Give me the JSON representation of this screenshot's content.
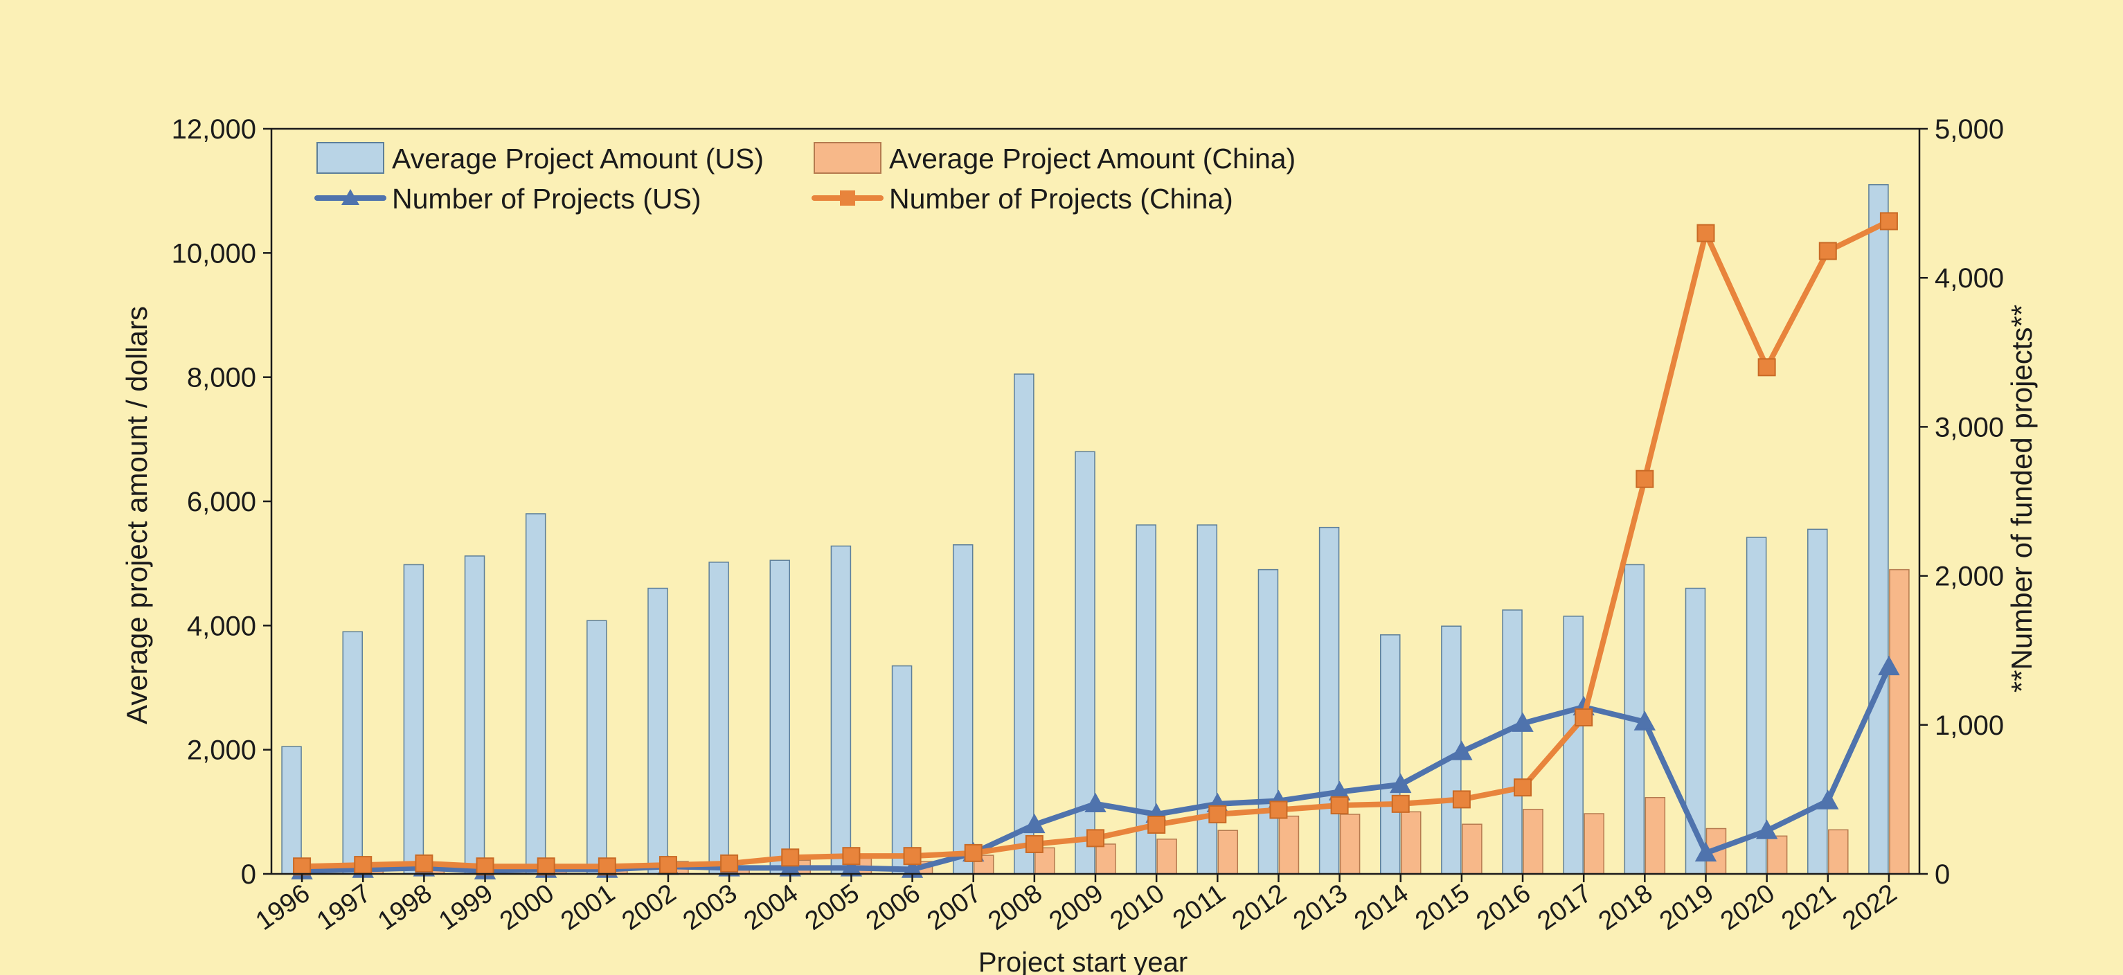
{
  "colors": {
    "background": "#fbf0b6",
    "us_bar": "#b9d4e6",
    "china_bar": "#f7b889",
    "us_line": "#4f73ad",
    "china_line": "#e8843c",
    "axis": "#1b1b1b"
  },
  "chart_data": {
    "type": "bar",
    "title": "",
    "xlabel": "Project start year",
    "ylabel": "Average project amount / dollars",
    "y2label": "**Number of funded projects**",
    "ylim": [
      0,
      12000
    ],
    "y2lim": [
      0,
      5000
    ],
    "yticks": [
      "0",
      "2,000",
      "4,000",
      "6,000",
      "8,000",
      "10,000",
      "12,000"
    ],
    "y2ticks": [
      "0",
      "1,000",
      "2,000",
      "3,000",
      "4,000",
      "5,000"
    ],
    "grid": false,
    "legend_position": "top-left",
    "categories": [
      "1996",
      "1997",
      "1998",
      "1999",
      "2000",
      "2001",
      "2002",
      "2003",
      "2004",
      "2005",
      "2006",
      "2007",
      "2008",
      "2009",
      "2010",
      "2011",
      "2012",
      "2013",
      "2014",
      "2015",
      "2016",
      "2017",
      "2018",
      "2019",
      "2020",
      "2021",
      "2022"
    ],
    "series": [
      {
        "name": "Average Project Amount (US)",
        "kind": "bar",
        "axis": "left",
        "color": "#b9d4e6",
        "values": [
          2050,
          3900,
          4980,
          5120,
          5800,
          4080,
          4600,
          5020,
          5050,
          5280,
          3350,
          5300,
          8050,
          6800,
          5620,
          5620,
          4900,
          5580,
          3850,
          3990,
          4250,
          4150,
          4980,
          4600,
          5420,
          5550,
          11100
        ]
      },
      {
        "name": "Average Project Amount (China)",
        "kind": "bar",
        "axis": "left",
        "color": "#f7b889",
        "values": [
          60,
          80,
          100,
          60,
          60,
          80,
          200,
          110,
          220,
          250,
          200,
          300,
          420,
          480,
          560,
          700,
          930,
          960,
          1000,
          800,
          1040,
          970,
          1230,
          730,
          610,
          710,
          4900
        ]
      },
      {
        "name": "Number of Projects (US)",
        "kind": "line",
        "marker": "triangle",
        "axis": "right",
        "color": "#4f73ad",
        "values": [
          20,
          30,
          40,
          20,
          30,
          30,
          50,
          40,
          40,
          40,
          30,
          140,
          330,
          470,
          400,
          470,
          490,
          550,
          600,
          820,
          1010,
          1120,
          1020,
          140,
          290,
          490,
          1390
        ]
      },
      {
        "name": "Number of Projects (China)",
        "kind": "line",
        "marker": "square",
        "axis": "right",
        "color": "#e8843c",
        "values": [
          50,
          60,
          70,
          50,
          50,
          50,
          60,
          70,
          110,
          120,
          120,
          140,
          200,
          240,
          330,
          400,
          430,
          460,
          470,
          500,
          580,
          1050,
          2650,
          4300,
          3400,
          4180,
          4380
        ]
      }
    ]
  }
}
